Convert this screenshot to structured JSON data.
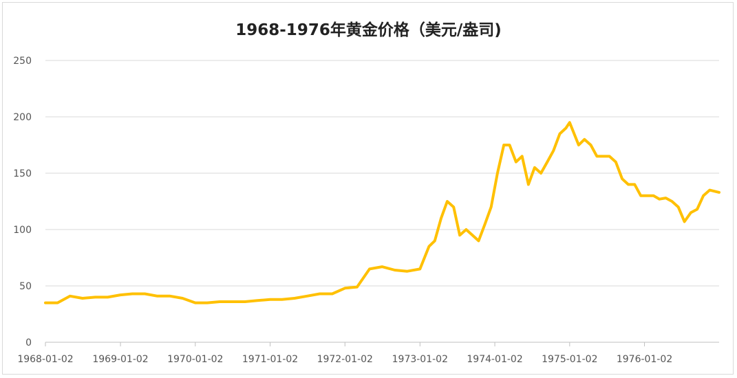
{
  "chart_data": {
    "type": "line",
    "title": "1968-1976年黄金价格（美元/盎司)",
    "xlabel": "",
    "ylabel": "",
    "ylim": [
      0,
      250
    ],
    "yticks": [
      "0",
      "50",
      "100",
      "150",
      "200",
      "250"
    ],
    "xticks": [
      "1968-01-02",
      "1969-01-02",
      "1970-01-02",
      "1971-01-02",
      "1972-01-02",
      "1973-01-02",
      "1974-01-02",
      "1975-01-02",
      "1976-01-02"
    ],
    "grid": true,
    "legend": "none",
    "series": [
      {
        "color": "#FFC000",
        "x": [
          "1968-01-02",
          "1968-03-01",
          "1968-05-01",
          "1968-07-01",
          "1968-09-01",
          "1968-11-01",
          "1969-01-02",
          "1969-03-01",
          "1969-05-01",
          "1969-07-01",
          "1969-09-01",
          "1969-11-01",
          "1970-01-02",
          "1970-03-01",
          "1970-05-01",
          "1970-07-01",
          "1970-09-01",
          "1970-11-01",
          "1971-01-02",
          "1971-03-01",
          "1971-05-01",
          "1971-07-01",
          "1971-09-01",
          "1971-11-01",
          "1972-01-02",
          "1972-03-01",
          "1972-05-01",
          "1972-07-01",
          "1972-09-01",
          "1972-11-01",
          "1973-01-02",
          "1973-02-15",
          "1973-03-15",
          "1973-04-15",
          "1973-05-15",
          "1973-06-15",
          "1973-07-15",
          "1973-08-15",
          "1973-09-15",
          "1973-10-15",
          "1973-11-15",
          "1973-12-15",
          "1974-01-15",
          "1974-02-15",
          "1974-03-15",
          "1974-04-15",
          "1974-05-15",
          "1974-06-15",
          "1974-07-15",
          "1974-08-15",
          "1974-09-15",
          "1974-10-15",
          "1974-11-15",
          "1974-12-15",
          "1975-01-02",
          "1975-02-15",
          "1975-03-15",
          "1975-04-15",
          "1975-05-15",
          "1975-06-15",
          "1975-07-15",
          "1975-08-15",
          "1975-09-15",
          "1975-10-15",
          "1975-11-15",
          "1975-12-15",
          "1976-01-15",
          "1976-02-15",
          "1976-03-15",
          "1976-04-15",
          "1976-05-15",
          "1976-06-15",
          "1976-07-15",
          "1976-08-15",
          "1976-09-15",
          "1976-10-15",
          "1976-11-15",
          "1976-12-31"
        ],
        "y": [
          35,
          35,
          41,
          39,
          40,
          40,
          42,
          43,
          43,
          41,
          41,
          39,
          35,
          35,
          36,
          36,
          36,
          37,
          38,
          38,
          39,
          41,
          43,
          43,
          48,
          49,
          65,
          67,
          64,
          63,
          65,
          85,
          90,
          110,
          125,
          120,
          95,
          100,
          95,
          90,
          105,
          120,
          150,
          175,
          175,
          160,
          165,
          140,
          155,
          150,
          160,
          170,
          185,
          190,
          195,
          175,
          180,
          175,
          165,
          165,
          165,
          160,
          145,
          140,
          140,
          130,
          130,
          130,
          127,
          128,
          125,
          120,
          107,
          115,
          118,
          130,
          135,
          133
        ]
      }
    ]
  }
}
